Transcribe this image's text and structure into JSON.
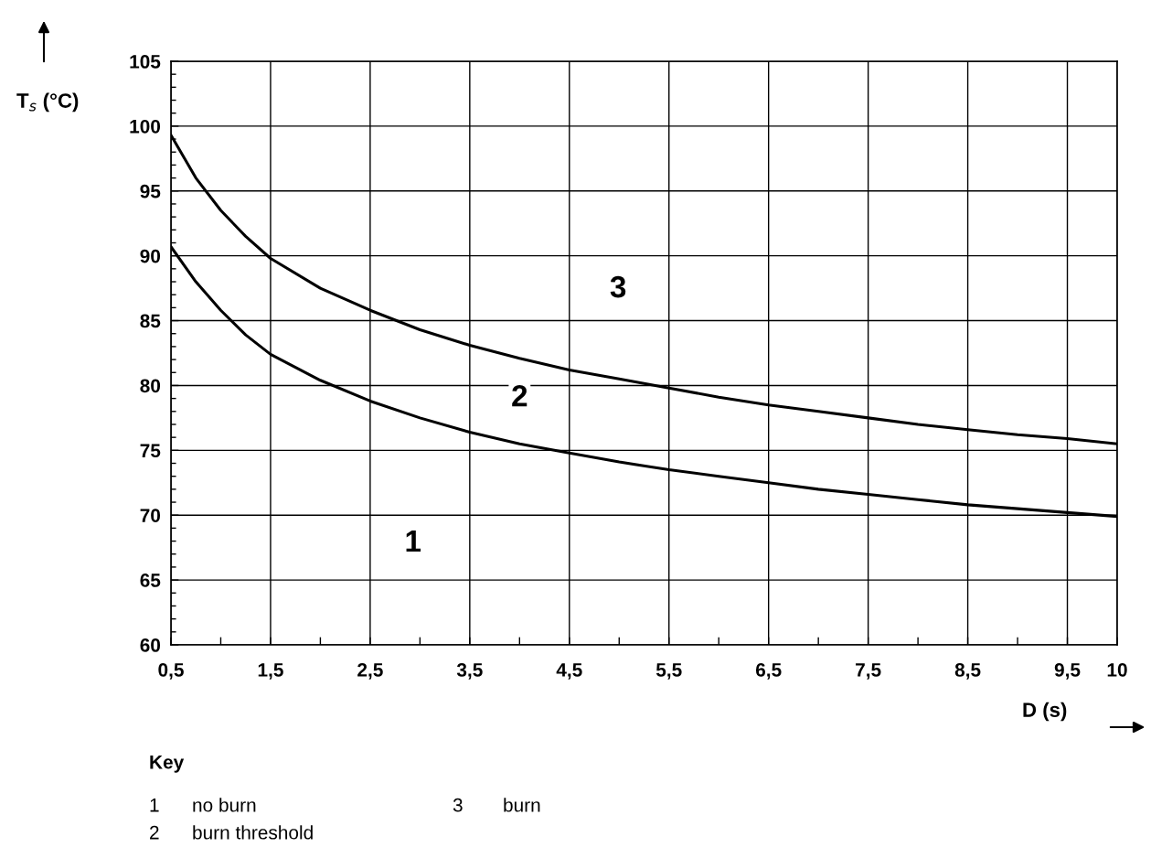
{
  "chart_data": {
    "type": "line",
    "xlabel": "D (s)",
    "ylabel": "T$_{s}$ (°C)",
    "x": [
      0.5,
      0.75,
      1.0,
      1.25,
      1.5,
      2.0,
      2.5,
      3.0,
      3.5,
      4.0,
      4.5,
      5.0,
      5.5,
      6.0,
      6.5,
      7.0,
      7.5,
      8.0,
      8.5,
      9.0,
      9.5,
      10.0
    ],
    "series": [
      {
        "color": "#000000",
        "values": [
          90.7,
          88.0,
          85.8,
          83.9,
          82.4,
          80.4,
          78.8,
          77.5,
          76.4,
          75.5,
          74.8,
          74.1,
          73.5,
          73.0,
          72.5,
          72.0,
          71.6,
          71.2,
          70.8,
          70.5,
          70.2,
          69.9
        ]
      },
      {
        "color": "#000000",
        "values": [
          99.3,
          96.0,
          93.5,
          91.5,
          89.8,
          87.5,
          85.8,
          84.3,
          83.1,
          82.1,
          81.2,
          80.5,
          79.8,
          79.1,
          78.5,
          78.0,
          77.5,
          77.0,
          76.6,
          76.2,
          75.9,
          75.5
        ]
      }
    ],
    "xlim": [
      0.5,
      10
    ],
    "ylim": [
      60,
      105
    ],
    "xticks": [
      {
        "value": 0.5,
        "label": "0,5"
      },
      {
        "value": 1,
        "label": null
      },
      {
        "value": 1.5,
        "label": "1,5"
      },
      {
        "value": 2,
        "label": null
      },
      {
        "value": 2.5,
        "label": "2,5"
      },
      {
        "value": 3,
        "label": null
      },
      {
        "value": 3.5,
        "label": "3,5"
      },
      {
        "value": 4,
        "label": null
      },
      {
        "value": 4.5,
        "label": "4,5"
      },
      {
        "value": 5,
        "label": null
      },
      {
        "value": 5.5,
        "label": "5,5"
      },
      {
        "value": 6,
        "label": null
      },
      {
        "value": 6.5,
        "label": "6,5"
      },
      {
        "value": 7,
        "label": null
      },
      {
        "value": 7.5,
        "label": "7,5"
      },
      {
        "value": 8,
        "label": null
      },
      {
        "value": 8.5,
        "label": "8,5"
      },
      {
        "value": 9,
        "label": null
      },
      {
        "value": 9.5,
        "label": "9,5"
      },
      10
    ],
    "yticks": [
      60,
      {
        "value": 61,
        "label": null
      },
      {
        "value": 62,
        "label": null
      },
      {
        "value": 63,
        "label": null
      },
      {
        "value": 64,
        "label": null
      },
      65,
      {
        "value": 66,
        "label": null
      },
      {
        "value": 67,
        "label": null
      },
      {
        "value": 68,
        "label": null
      },
      {
        "value": 69,
        "label": null
      },
      70,
      {
        "value": 71,
        "label": null
      },
      {
        "value": 72,
        "label": null
      },
      {
        "value": 73,
        "label": null
      },
      {
        "value": 74,
        "label": null
      },
      75,
      {
        "value": 76,
        "label": null
      },
      {
        "value": 77,
        "label": null
      },
      {
        "value": 78,
        "label": null
      },
      {
        "value": 79,
        "label": null
      },
      80,
      {
        "value": 81,
        "label": null
      },
      {
        "value": 82,
        "label": null
      },
      {
        "value": 83,
        "label": null
      },
      {
        "value": 84,
        "label": null
      },
      85,
      {
        "value": 86,
        "label": null
      },
      {
        "value": 87,
        "label": null
      },
      {
        "value": 88,
        "label": null
      },
      {
        "value": 89,
        "label": null
      },
      90,
      {
        "value": 91,
        "label": null
      },
      {
        "value": 92,
        "label": null
      },
      {
        "value": 93,
        "label": null
      },
      {
        "value": 94,
        "label": null
      },
      95,
      {
        "value": 96,
        "label": null
      },
      {
        "value": 97,
        "label": null
      },
      {
        "value": 98,
        "label": null
      },
      {
        "value": 99,
        "label": null
      },
      100,
      {
        "value": 101,
        "label": null
      },
      {
        "value": 102,
        "label": null
      },
      {
        "value": 103,
        "label": null
      },
      {
        "value": 104,
        "label": null
      },
      105
    ],
    "grid": true,
    "marker": "none",
    "line_style": "solid",
    "annotations": [
      {
        "text": "1",
        "x": 2.93,
        "y": 67.8
      },
      {
        "text": "2",
        "x": 4.0,
        "y": 79.0
      },
      {
        "text": "3",
        "x": 4.99,
        "y": 87.4
      },
      "Key",
      "1",
      "no burn",
      "3",
      "burn",
      "2",
      "burn threshold"
    ]
  }
}
